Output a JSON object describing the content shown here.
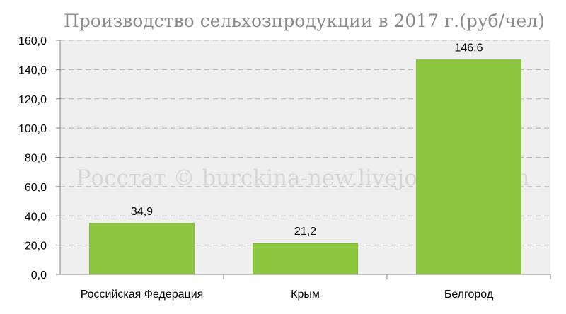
{
  "chart_data": {
    "type": "bar",
    "title": "Производство сельхозпродукции в 2017 г.(руб/чел)",
    "categories": [
      "Российская Федерация",
      "Крым",
      "Белгород"
    ],
    "values": [
      34.9,
      21.2,
      146.6
    ],
    "value_labels": [
      "34,9",
      "21,2",
      "146,6"
    ],
    "y_ticks": [
      "0,0",
      "20,0",
      "40,0",
      "60,0",
      "80,0",
      "100,0",
      "120,0",
      "140,0",
      "160,0"
    ],
    "ylim": [
      0,
      160
    ],
    "xlabel": "",
    "ylabel": "",
    "grid": true,
    "bar_color": "#8dc63f",
    "plot_background": "#efefef",
    "watermark": "Росстат © burckina-new.livejournal.com"
  }
}
